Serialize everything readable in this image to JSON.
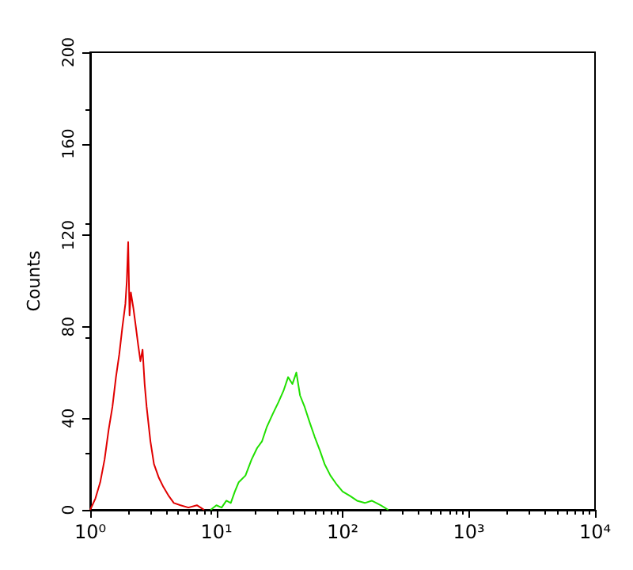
{
  "chart_data": {
    "type": "line",
    "ylabel": "Counts",
    "log": "x",
    "xlim": [
      1,
      10000
    ],
    "ylim": [
      0,
      200
    ],
    "xticks": [
      {
        "value": 1,
        "label": "10⁰"
      },
      {
        "value": 10,
        "label": "10¹"
      },
      {
        "value": 100,
        "label": "10²"
      },
      {
        "value": 1000,
        "label": "10³"
      },
      {
        "value": 10000,
        "label": "10⁴"
      }
    ],
    "yticks": [
      0,
      40,
      80,
      120,
      160,
      200
    ],
    "grid": false,
    "marker": "none",
    "line_style": "solid",
    "series": [
      {
        "color": "#e00000",
        "x": [
          1.0,
          1.1,
          1.2,
          1.3,
          1.4,
          1.5,
          1.6,
          1.7,
          1.8,
          1.9,
          1.95,
          2.0,
          2.05,
          2.1,
          2.2,
          2.3,
          2.4,
          2.5,
          2.6,
          2.7,
          2.8,
          3.0,
          3.2,
          3.5,
          3.8,
          4.2,
          4.6,
          5.2,
          6,
          7,
          8
        ],
        "values": [
          0,
          5,
          12,
          22,
          35,
          45,
          58,
          68,
          80,
          90,
          100,
          117,
          85,
          95,
          88,
          80,
          72,
          65,
          70,
          55,
          45,
          30,
          20,
          14,
          10,
          6,
          3,
          2,
          1,
          2,
          0
        ]
      },
      {
        "color": "#20e000",
        "x": [
          9,
          10,
          11,
          12,
          13,
          14,
          15,
          17,
          19,
          21,
          23,
          25,
          28,
          31,
          34,
          37,
          40,
          43,
          46,
          50,
          55,
          60,
          66,
          72,
          80,
          90,
          100,
          115,
          130,
          150,
          170,
          200,
          230
        ],
        "values": [
          0,
          2,
          1,
          4,
          3,
          8,
          12,
          15,
          22,
          27,
          30,
          36,
          42,
          47,
          52,
          58,
          55,
          60,
          50,
          45,
          38,
          32,
          26,
          20,
          15,
          11,
          8,
          6,
          4,
          3,
          4,
          2,
          0
        ]
      }
    ]
  }
}
